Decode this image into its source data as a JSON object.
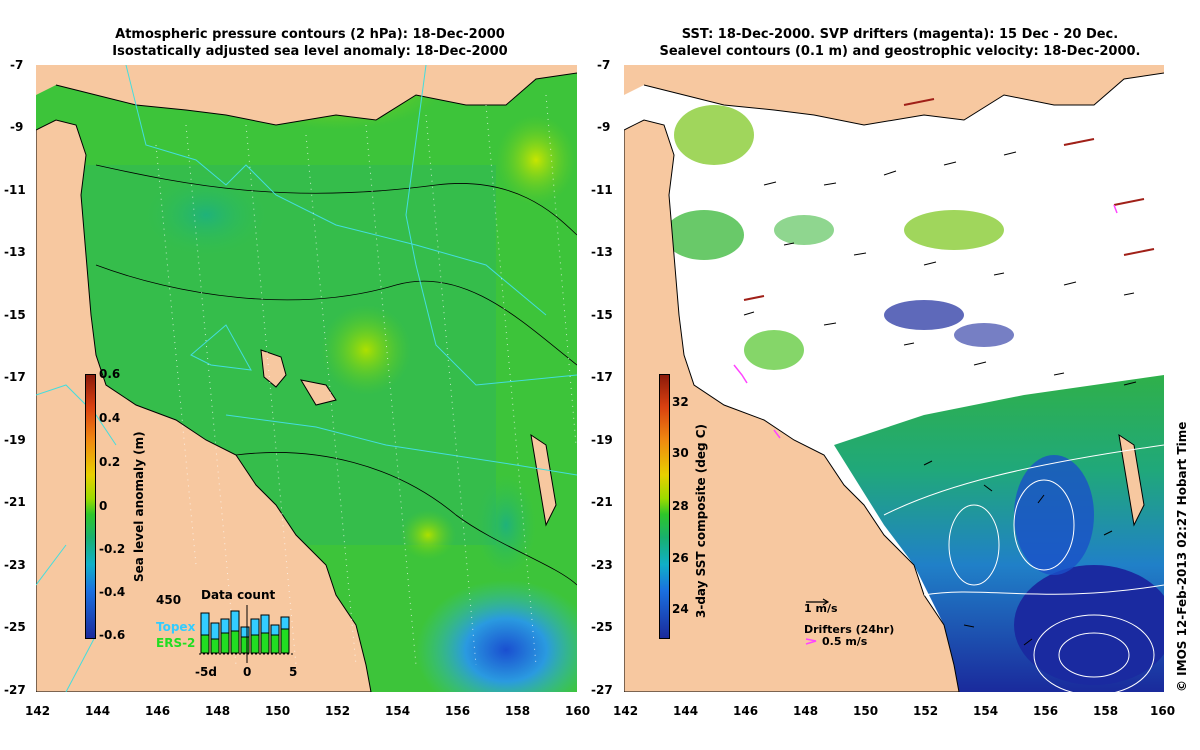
{
  "left_panel": {
    "title_line1": "Atmospheric pressure contours (2 hPa): 18-Dec-2000",
    "title_line2": "Isostatically adjusted sea level anomaly: 18-Dec-2000",
    "lat_ticks": [
      "-7",
      "-9",
      "-11",
      "-13",
      "-15",
      "-17",
      "-19",
      "-21",
      "-23",
      "-25",
      "-27"
    ],
    "lon_ticks": [
      "142",
      "144",
      "146",
      "148",
      "150",
      "152",
      "154",
      "156",
      "158",
      "160"
    ],
    "colorbar": {
      "label": "Sea level anomaly (m)",
      "ticks": [
        "0.6",
        "0.4",
        "0.2",
        "0",
        "-0.2",
        "-0.4",
        "-0.6"
      ]
    },
    "data_count": {
      "title": "Data count",
      "max_label": "450",
      "xlabels": [
        "-5d",
        "0",
        "5"
      ],
      "legend_topex": "Topex",
      "legend_ers2": "ERS-2",
      "topex_color": "#33ccff",
      "ers2_color": "#22dd22"
    }
  },
  "right_panel": {
    "title_line1": "SST: 18-Dec-2000. SVP drifters (magenta): 15 Dec - 20 Dec.",
    "title_line2": "Sealevel contours (0.1 m) and geostrophic velocity: 18-Dec-2000.",
    "lat_ticks": [
      "-7",
      "-9",
      "-11",
      "-13",
      "-15",
      "-17",
      "-19",
      "-21",
      "-23",
      "-25",
      "-27"
    ],
    "lon_ticks": [
      "142",
      "144",
      "146",
      "148",
      "150",
      "152",
      "154",
      "156",
      "158",
      "160"
    ],
    "colorbar": {
      "label": "3-day SST composite (deg C)",
      "ticks": [
        "32",
        "30",
        "28",
        "26",
        "24"
      ]
    },
    "velocity_legend": "1 m/s",
    "drifters_legend_title": "Drifters (24hr)",
    "drifters_legend_speed": "0.5 m/s",
    "drifter_color": "#ff44ff",
    "credit": "© IMOS 12-Feb-2013 02:27 Hobart Time"
  },
  "colors": {
    "land": "#f7c8a0",
    "sla_zero": "#33cc33",
    "sst_low": "#1a2a8c",
    "sst_high": "#a83018",
    "coastline": "#000000",
    "altimeter_tracks": "#44dddd"
  }
}
